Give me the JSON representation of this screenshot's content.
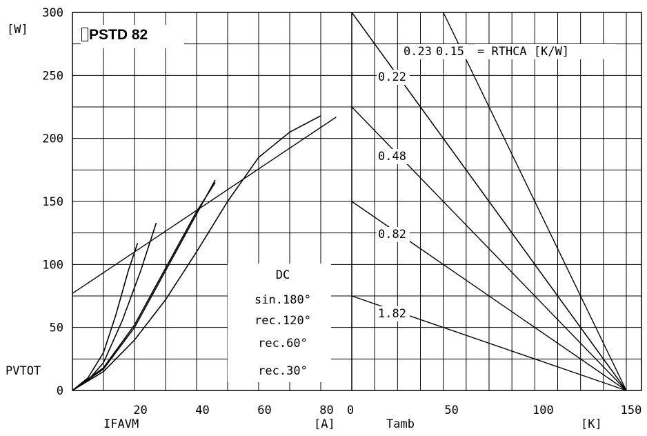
{
  "chart_data": [
    {
      "type": "line",
      "title": "PSTD 82",
      "ylabel_top": "[W]",
      "ylabel_bottom": "PVTOT",
      "xlabel_left": "IFAVM",
      "xlabel_unit": "[A]",
      "ylim": [
        0,
        300
      ],
      "xlim": [
        0,
        90
      ],
      "y_ticks": [
        0,
        50,
        100,
        150,
        200,
        250,
        300
      ],
      "x_ticks": [
        20,
        40,
        60,
        80
      ],
      "grid": true,
      "legend_labels": [
        "DC",
        "sin.180°",
        "rec.120°",
        "rec.60°",
        "rec.30°"
      ],
      "series": [
        {
          "name": "DC",
          "points": [
            [
              0,
              0
            ],
            [
              10,
              15
            ],
            [
              20,
              40
            ],
            [
              30,
              72
            ],
            [
              40,
              110
            ],
            [
              50,
              150
            ],
            [
              60,
              185
            ],
            [
              70,
              205
            ],
            [
              80,
              218
            ]
          ]
        },
        {
          "name": "sin.180°",
          "points": [
            [
              0,
              0
            ],
            [
              10,
              17
            ],
            [
              20,
              50
            ],
            [
              30,
              95
            ],
            [
              40,
              140
            ],
            [
              46,
              167
            ]
          ]
        },
        {
          "name": "rec.120°",
          "points": [
            [
              0,
              0
            ],
            [
              10,
              18
            ],
            [
              20,
              52
            ],
            [
              30,
              97
            ],
            [
              40,
              142
            ],
            [
              46,
              165
            ]
          ]
        },
        {
          "name": "rec.60°",
          "points": [
            [
              0,
              0
            ],
            [
              5,
              8
            ],
            [
              10,
              22
            ],
            [
              16,
              55
            ],
            [
              22,
              95
            ],
            [
              27,
              133
            ]
          ]
        },
        {
          "name": "rec.30°",
          "points": [
            [
              0,
              0
            ],
            [
              5,
              10
            ],
            [
              10,
              30
            ],
            [
              14,
              60
            ],
            [
              18,
              95
            ],
            [
              21,
              117
            ]
          ]
        }
      ],
      "tangent_line": [
        [
          0,
          77
        ],
        [
          85,
          217
        ]
      ]
    },
    {
      "type": "line",
      "xlabel": "Tamb",
      "xlabel_unit": "[K]",
      "xlim": [
        0,
        150
      ],
      "x_ticks": [
        0,
        50,
        100,
        150
      ],
      "rthca_label": "= RTHCA [K/W]",
      "series": [
        {
          "label": "0.23",
          "points": [
            [
              50,
              300
            ],
            [
              150,
              0
            ]
          ]
        },
        {
          "label": "0.15",
          "points": [
            [
              0,
              300
            ],
            [
              150,
              0
            ]
          ]
        },
        {
          "label": "0.22",
          "points": [
            [
              0,
              300
            ],
            [
              150,
              0
            ]
          ]
        },
        {
          "label": "0.48",
          "points": [
            [
              0,
              225
            ],
            [
              150,
              0
            ]
          ]
        },
        {
          "label": "0.82",
          "points": [
            [
              0,
              150
            ],
            [
              150,
              0
            ]
          ]
        },
        {
          "label": "1.82",
          "points": [
            [
              0,
              75
            ],
            [
              150,
              0
            ]
          ]
        }
      ]
    }
  ]
}
